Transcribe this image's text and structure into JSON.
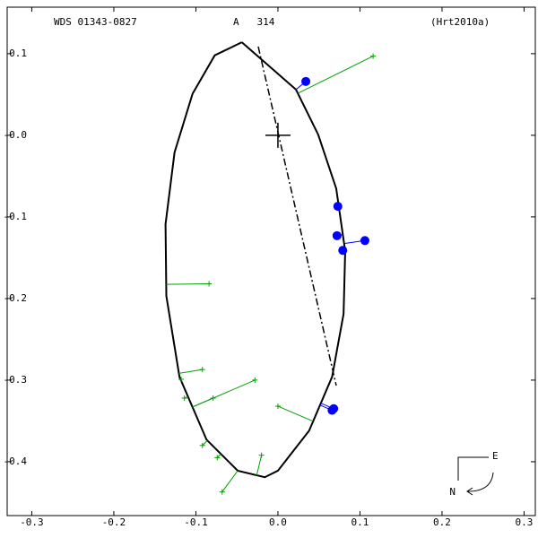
{
  "chart_data": {
    "type": "scatter",
    "texts": [
      "WDS 01343-0827",
      "A   314",
      "(Hrt2010a)"
    ],
    "compass": [
      "E",
      "N"
    ],
    "xlim": [
      -0.33,
      0.3137
    ],
    "ylim": [
      -0.466,
      0.157
    ],
    "xticks": [
      -0.3,
      -0.2,
      -0.1,
      {
        "value": 0,
        "label": "0.0"
      },
      0.1,
      0.2,
      0.3
    ],
    "yticks": [
      0.1,
      {
        "value": 0,
        "label": "-0.0"
      },
      -0.1,
      -0.2,
      -0.3,
      -0.4
    ],
    "series": [
      {
        "type": "line",
        "color": "#000000",
        "x": [
          -0.044,
          0.022,
          0.049,
          0.071,
          0.082,
          0.08,
          0.066,
          0.038,
          0.0,
          -0.016,
          -0.049,
          -0.087,
          -0.12,
          -0.136,
          -0.137,
          -0.126,
          -0.104,
          -0.077,
          -0.044
        ],
        "y": [
          0.114,
          0.056,
          0.001,
          -0.065,
          -0.142,
          -0.219,
          -0.296,
          -0.362,
          -0.411,
          -0.419,
          -0.411,
          -0.373,
          -0.296,
          -0.197,
          -0.109,
          -0.021,
          0.051,
          0.098,
          0.114
        ]
      },
      {
        "type": "cross",
        "color": "#00a000",
        "x": [
          0.116,
          -0.084,
          -0.118,
          -0.114,
          -0.092,
          -0.079,
          -0.092,
          -0.074,
          -0.068,
          -0.028,
          -0.02,
          0.0
        ],
        "y": [
          0.097,
          -0.182,
          -0.299,
          -0.322,
          -0.287,
          -0.322,
          -0.38,
          -0.395,
          -0.437,
          -0.3,
          -0.392,
          -0.332
        ]
      },
      {
        "type": "dot",
        "color": "#0000ff",
        "x": [
          0.034,
          0.073,
          0.072,
          0.079,
          0.106,
          0.066,
          0.068
        ],
        "y": [
          0.066,
          -0.087,
          -0.123,
          -0.141,
          -0.129,
          -0.337,
          -0.335
        ]
      }
    ]
  }
}
